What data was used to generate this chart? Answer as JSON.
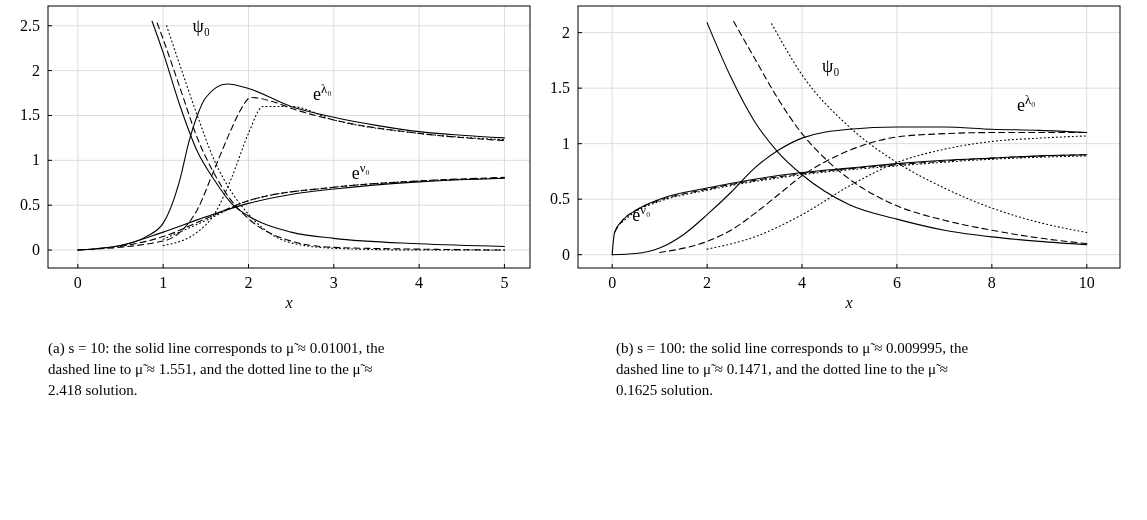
{
  "chart_data": [
    {
      "type": "line",
      "xlabel": "x",
      "xlim": [
        -0.35,
        5.3
      ],
      "ylim": [
        -0.2,
        2.72
      ],
      "xticks": [
        0,
        1,
        2,
        3,
        4,
        5
      ],
      "yticks": [
        0,
        0.5,
        1,
        1.5,
        2,
        2.5
      ],
      "grid": true,
      "series": [
        {
          "color": "#000000",
          "line_style": "solid",
          "x": [
            0.87,
            1,
            1.2,
            1.4,
            1.6,
            1.8,
            2,
            2.5,
            3,
            4,
            5
          ],
          "values": [
            2.55,
            2.2,
            1.6,
            1.1,
            0.78,
            0.52,
            0.38,
            0.2,
            0.13,
            0.07,
            0.04
          ]
        },
        {
          "color": "#000000",
          "line_style": "dashed",
          "x": [
            0.93,
            1,
            1.2,
            1.4,
            1.6,
            1.8,
            2,
            2.5,
            3,
            4,
            5
          ],
          "values": [
            2.53,
            2.35,
            1.8,
            1.25,
            0.85,
            0.55,
            0.35,
            0.1,
            0.03,
            0.01,
            0
          ]
        },
        {
          "color": "#000000",
          "line_style": "dotted",
          "x": [
            1.04,
            1.2,
            1.4,
            1.6,
            1.8,
            2,
            2.2,
            2.5,
            3,
            4,
            5
          ],
          "values": [
            2.5,
            2.05,
            1.5,
            1.0,
            0.65,
            0.4,
            0.22,
            0.08,
            0.02,
            0,
            0
          ]
        },
        {
          "color": "#000000",
          "line_style": "solid",
          "x": [
            0,
            0.5,
            0.8,
            1,
            1.2,
            1.3,
            1.4,
            1.5,
            1.75,
            2,
            2.5,
            3,
            3.5,
            4,
            4.5,
            5
          ],
          "values": [
            0,
            0.05,
            0.15,
            0.3,
            0.8,
            1.2,
            1.5,
            1.7,
            1.85,
            1.8,
            1.6,
            1.48,
            1.39,
            1.32,
            1.28,
            1.25
          ]
        },
        {
          "color": "#000000",
          "line_style": "dashed",
          "x": [
            0,
            1,
            1.2,
            1.4,
            1.6,
            1.8,
            1.9,
            2.03,
            2.3,
            2.5,
            3,
            4,
            5
          ],
          "values": [
            0,
            0.1,
            0.2,
            0.45,
            0.9,
            1.35,
            1.55,
            1.7,
            1.65,
            1.58,
            1.45,
            1.3,
            1.22
          ]
        },
        {
          "color": "#000000",
          "line_style": "dotted",
          "x": [
            1,
            1.4,
            1.6,
            1.8,
            2,
            2.17,
            2.5,
            3,
            4,
            5
          ],
          "values": [
            0.05,
            0.2,
            0.4,
            0.8,
            1.3,
            1.6,
            1.6,
            1.45,
            1.3,
            1.23
          ]
        },
        {
          "color": "#000000",
          "line_style": "solid",
          "x": [
            0,
            0.5,
            1,
            1.5,
            2,
            2.5,
            3,
            4,
            5
          ],
          "values": [
            0,
            0.05,
            0.2,
            0.37,
            0.52,
            0.62,
            0.68,
            0.76,
            0.8
          ]
        },
        {
          "color": "#000000",
          "line_style": "dashed",
          "x": [
            0.5,
            1,
            1.5,
            2,
            3,
            4,
            5
          ],
          "values": [
            0.04,
            0.15,
            0.35,
            0.55,
            0.7,
            0.77,
            0.81
          ]
        },
        {
          "color": "#000000",
          "line_style": "dotted",
          "x": [
            1,
            1.5,
            2,
            3,
            4,
            5
          ],
          "values": [
            0.12,
            0.33,
            0.55,
            0.7,
            0.77,
            0.8
          ]
        }
      ],
      "annotations": [
        "ψ₀",
        "e$^{λ₀}$",
        "e$^{ν₀}$",
        "(a) s = 10: the solid line corresponds to μ̃ ≈ 0.01001, the dashed line to μ̃ ≈ 1.551, and the dotted line to the μ̃ ≈ 2.418 solution."
      ]
    },
    {
      "type": "line",
      "xlabel": "x",
      "xlim": [
        -0.72,
        10.7
      ],
      "ylim": [
        -0.12,
        2.24
      ],
      "xticks": [
        0,
        2,
        4,
        6,
        8,
        10
      ],
      "yticks": [
        0,
        0.5,
        1,
        1.5,
        2
      ],
      "grid": true,
      "series": [
        {
          "color": "#000000",
          "line_style": "solid",
          "x": [
            2,
            2.5,
            3,
            3.5,
            4,
            5,
            6,
            7,
            8,
            9,
            10
          ],
          "values": [
            2.09,
            1.6,
            1.2,
            0.92,
            0.72,
            0.45,
            0.32,
            0.22,
            0.16,
            0.12,
            0.09
          ]
        },
        {
          "color": "#000000",
          "line_style": "dashed",
          "x": [
            2.56,
            3,
            3.5,
            4,
            4.5,
            5,
            6,
            7,
            8,
            9,
            10
          ],
          "values": [
            2.1,
            1.77,
            1.4,
            1.09,
            0.86,
            0.68,
            0.44,
            0.31,
            0.22,
            0.15,
            0.1
          ]
        },
        {
          "color": "#000000",
          "line_style": "dotted",
          "x": [
            3.36,
            4,
            5,
            6,
            7,
            8,
            9,
            10
          ],
          "values": [
            2.08,
            1.62,
            1.15,
            0.83,
            0.6,
            0.42,
            0.29,
            0.2
          ]
        },
        {
          "color": "#000000",
          "line_style": "solid",
          "x": [
            0,
            0.5,
            1,
            1.5,
            2,
            2.5,
            3,
            3.5,
            4,
            5,
            6,
            7,
            8,
            9,
            10
          ],
          "values": [
            0,
            0.01,
            0.06,
            0.18,
            0.36,
            0.56,
            0.78,
            0.94,
            1.05,
            1.13,
            1.15,
            1.15,
            1.13,
            1.12,
            1.1
          ]
        },
        {
          "color": "#000000",
          "line_style": "dashed",
          "x": [
            1,
            2,
            2.5,
            3,
            3.5,
            4,
            4.5,
            5,
            6,
            7,
            8,
            10
          ],
          "values": [
            0.02,
            0.12,
            0.22,
            0.37,
            0.54,
            0.71,
            0.84,
            0.94,
            1.06,
            1.09,
            1.1,
            1.1
          ]
        },
        {
          "color": "#000000",
          "line_style": "dotted",
          "x": [
            2,
            3,
            4,
            5,
            6,
            7,
            8,
            9,
            10
          ],
          "values": [
            0.05,
            0.16,
            0.36,
            0.62,
            0.83,
            0.95,
            1.02,
            1.05,
            1.07
          ]
        },
        {
          "color": "#000000",
          "line_style": "solid",
          "x": [
            0,
            0.05,
            0.2,
            0.5,
            1,
            2,
            3,
            4,
            5,
            6,
            7,
            8,
            9,
            10
          ],
          "values": [
            0,
            0.2,
            0.3,
            0.4,
            0.5,
            0.6,
            0.68,
            0.74,
            0.78,
            0.82,
            0.85,
            0.87,
            0.89,
            0.9
          ]
        },
        {
          "color": "#000000",
          "line_style": "dashed",
          "x": [
            0.05,
            0.2,
            0.5,
            1,
            2,
            4,
            6,
            8,
            10
          ],
          "values": [
            0.2,
            0.3,
            0.4,
            0.49,
            0.59,
            0.73,
            0.81,
            0.87,
            0.9
          ]
        },
        {
          "color": "#000000",
          "line_style": "dotted",
          "x": [
            0.2,
            0.5,
            1,
            2,
            4,
            6,
            8,
            10
          ],
          "values": [
            0.29,
            0.39,
            0.48,
            0.58,
            0.72,
            0.8,
            0.86,
            0.89
          ]
        }
      ],
      "annotations": [
        "ψ₀",
        "e$^{λ₀}$",
        "e$^{ν₀}$",
        "(b) s = 100: the solid line corresponds to μ̃ ≈ 0.009995, the dashed line to μ̃ ≈ 0.1471, and the dotted line to the μ̃ ≈ 0.1625 solution."
      ]
    }
  ]
}
